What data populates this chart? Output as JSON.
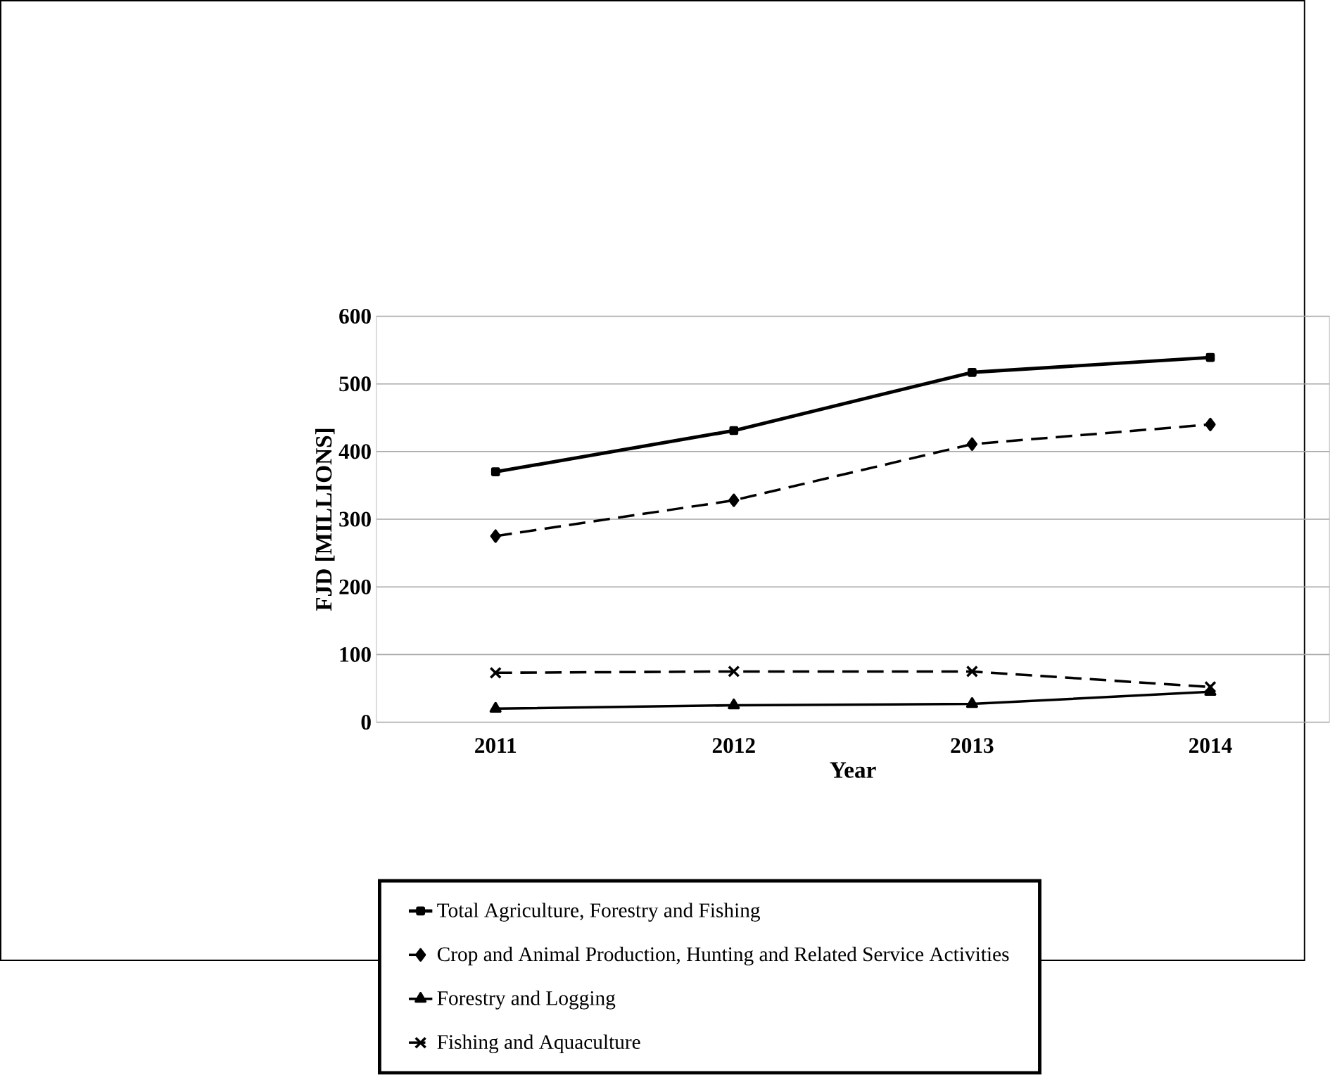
{
  "chart_data": {
    "type": "line",
    "xlabel": "Year",
    "ylabel": "FJD [MILLIONS]",
    "categories": [
      "2011",
      "2012",
      "2013",
      "2014"
    ],
    "ylim": [
      0,
      600
    ],
    "yticks": [
      0,
      100,
      200,
      300,
      400,
      500,
      600
    ],
    "grid": "y",
    "legend": "bottom",
    "series": [
      {
        "name": "Total Agriculture, Forestry and Fishing",
        "color": "#000000",
        "values": [
          370,
          431,
          517,
          539
        ],
        "marker": "square",
        "line_style": "solid"
      },
      {
        "name": "Crop and Animal Production, Hunting and Related Service Activities",
        "color": "#000000",
        "values": [
          275,
          328,
          411,
          440
        ],
        "marker": "diamond",
        "line_style": "dashed"
      },
      {
        "name": "Forestry and Logging",
        "color": "#000000",
        "values": [
          20,
          25,
          27,
          45
        ],
        "marker": "triangle",
        "line_style": "solid"
      },
      {
        "name": "Fishing and Aquaculture",
        "color": "#000000",
        "values": [
          73,
          75,
          75,
          52
        ],
        "marker": "cross",
        "line_style": "dashed"
      }
    ]
  }
}
